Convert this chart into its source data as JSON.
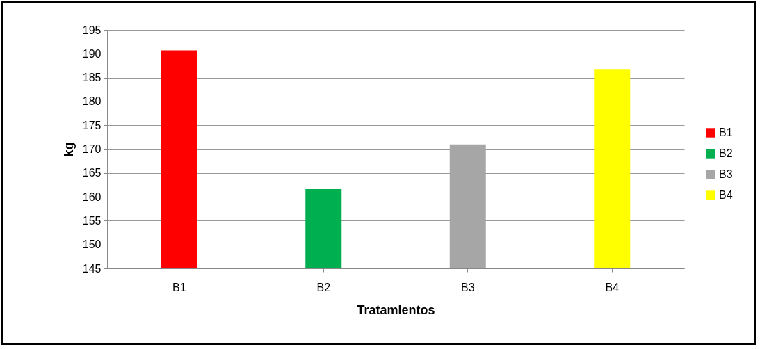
{
  "chart_data": {
    "type": "bar",
    "xlabel": "Tratamientos",
    "ylabel": "kg",
    "categories": [
      "B1",
      "B2",
      "B3",
      "B4"
    ],
    "series": [
      {
        "name": "B1",
        "color": "#ff0000",
        "values": [
          190.7,
          null,
          null,
          null
        ]
      },
      {
        "name": "B2",
        "color": "#00b050",
        "values": [
          null,
          161.6,
          null,
          null
        ]
      },
      {
        "name": "B3",
        "color": "#a6a6a6",
        "values": [
          null,
          null,
          171.0,
          null
        ]
      },
      {
        "name": "B4",
        "color": "#ffff00",
        "values": [
          null,
          null,
          null,
          186.8
        ]
      }
    ],
    "ylim": [
      145,
      195
    ],
    "yticks": [
      145,
      150,
      155,
      160,
      165,
      170,
      175,
      180,
      185,
      190,
      195
    ],
    "grid": "y",
    "legend": "right"
  }
}
